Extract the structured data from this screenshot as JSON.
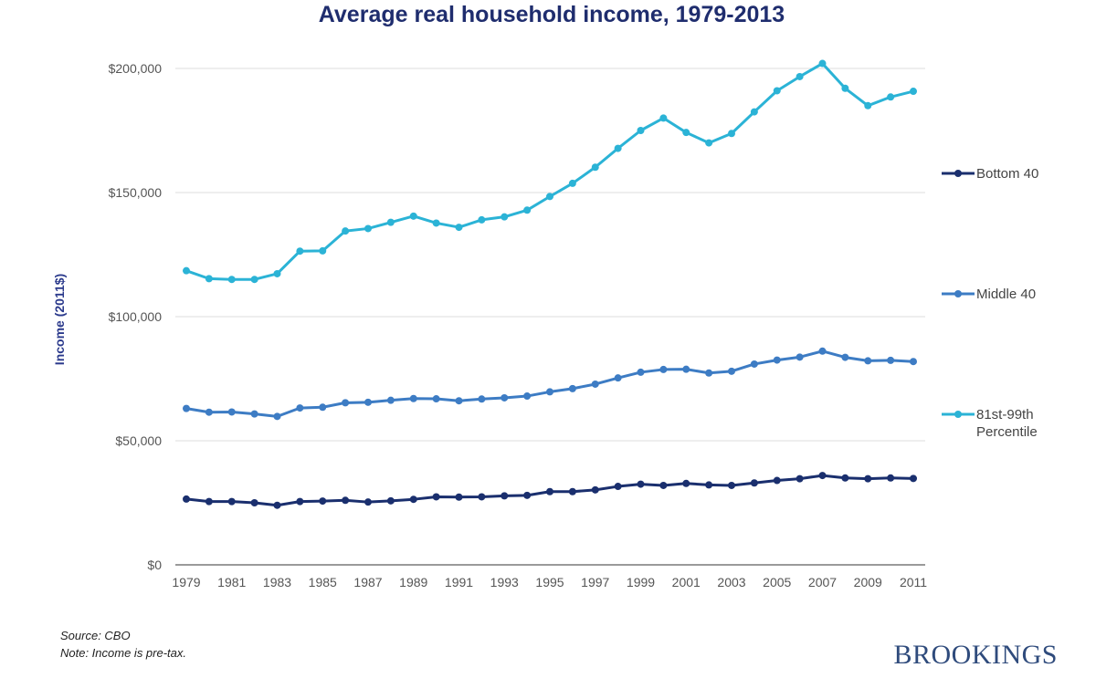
{
  "chart_data": {
    "type": "line",
    "title": "Average real household income, 1979-2013",
    "xlabel": "",
    "ylabel": "Income (2011$)",
    "ylim": [
      0,
      200000
    ],
    "yticks": [
      0,
      50000,
      100000,
      150000,
      200000
    ],
    "ytick_labels": [
      "$0",
      "$50,000",
      "$100,000",
      "$150,000",
      "$200,000"
    ],
    "xlim": [
      1979,
      2011
    ],
    "xticks": [
      1979,
      1981,
      1983,
      1985,
      1987,
      1989,
      1991,
      1993,
      1995,
      1997,
      1999,
      2001,
      2003,
      2005,
      2007,
      2009,
      2011
    ],
    "xtick_labels": [
      "1979",
      "1981",
      "1983",
      "1985",
      "1987",
      "1989",
      "1991",
      "1993",
      "1995",
      "1997",
      "1999",
      "2001",
      "2003",
      "2005",
      "2007",
      "2009",
      "2011"
    ],
    "grid": true,
    "x": [
      1979,
      1980,
      1981,
      1982,
      1983,
      1984,
      1985,
      1986,
      1987,
      1988,
      1989,
      1990,
      1991,
      1992,
      1993,
      1994,
      1995,
      1996,
      1997,
      1998,
      1999,
      2000,
      2001,
      2002,
      2003,
      2004,
      2005,
      2006,
      2007,
      2008,
      2009,
      2010,
      2011
    ],
    "series": [
      {
        "name": "Bottom 40",
        "legend_lines": [
          "Bottom 40"
        ],
        "color": "#1a2f6e",
        "values": [
          26500,
          25500,
          25500,
          25000,
          24000,
          25500,
          25700,
          26000,
          25300,
          25800,
          26400,
          27400,
          27300,
          27400,
          27800,
          28000,
          29500,
          29500,
          30200,
          31600,
          32500,
          32000,
          32800,
          32200,
          32000,
          33000,
          34000,
          34700,
          36000,
          35000,
          34700,
          35000,
          34800
        ]
      },
      {
        "name": "Middle 40",
        "legend_lines": [
          "Middle 40"
        ],
        "color": "#3d7cc4",
        "values": [
          63000,
          61500,
          61600,
          60800,
          59800,
          63200,
          63500,
          65300,
          65500,
          66300,
          67000,
          66900,
          66100,
          66800,
          67300,
          68000,
          69700,
          71000,
          72800,
          75300,
          77600,
          78700,
          78800,
          77300,
          78000,
          80900,
          82500,
          83700,
          86100,
          83600,
          82200,
          82400,
          81900
        ]
      },
      {
        "name": "81st-99th Percentile",
        "legend_lines": [
          "81st-99th",
          "Percentile"
        ],
        "color": "#2bb3d6",
        "values": [
          118500,
          115300,
          115000,
          115000,
          117300,
          126400,
          126500,
          134500,
          135500,
          138000,
          140500,
          137700,
          136000,
          139000,
          140200,
          142900,
          148400,
          153700,
          160200,
          167800,
          175000,
          180000,
          174200,
          170000,
          173800,
          182500,
          191000,
          196700,
          202000,
          192000,
          185000,
          188500,
          190800
        ]
      }
    ]
  },
  "footer": {
    "source": "Source: CBO",
    "note": "Note: Income is pre-tax.",
    "brand": "BROOKINGS"
  }
}
